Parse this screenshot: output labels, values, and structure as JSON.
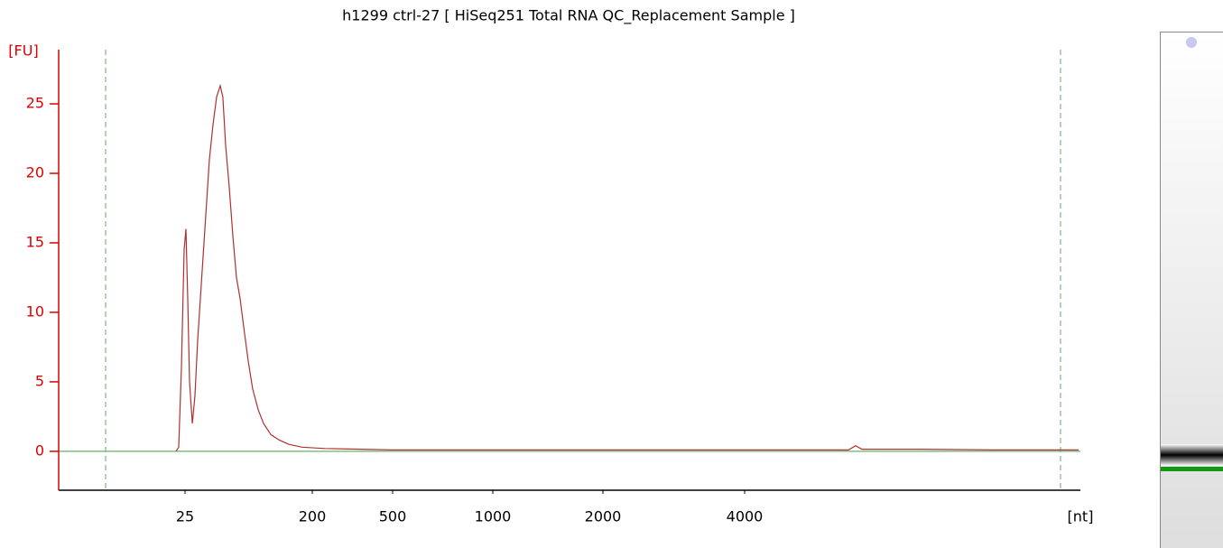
{
  "chart_data": {
    "type": "line",
    "title": "h1299 ctrl-27  [ HiSeq251 Total RNA QC_Replacement Sample ]",
    "y_label": "[FU]",
    "x_label": "[nt]",
    "color": "#b03030",
    "axis_color": "#dd0000",
    "x": [
      12.6,
      16.3,
      20,
      23.8,
      26.2,
      28.7,
      31.2,
      35,
      38.7,
      42.4,
      47.3,
      52.3,
      58.5,
      63.5,
      68.4,
      73.4,
      77,
      80.8,
      85.8,
      90.8,
      95.7,
      100.7,
      105.6,
      111.9,
      118,
      125.5,
      133,
      143,
      155,
      167.7,
      186,
      247,
      382,
      500,
      1000,
      2000,
      4000,
      5465,
      5567,
      5656,
      6484,
      7503,
      8713
    ],
    "values": [
      0,
      0.3,
      6,
      14.5,
      16,
      11,
      5,
      2,
      4,
      8,
      12,
      16,
      21,
      23.5,
      25.5,
      26.3,
      25.5,
      22,
      19,
      15.5,
      12.5,
      11,
      9,
      6.5,
      4.5,
      3,
      2,
      1.2,
      0.8,
      0.5,
      0.3,
      0.2,
      0.15,
      0.1,
      0.1,
      0.1,
      0.1,
      0.1,
      0.4,
      0.15,
      0.15,
      0.1,
      0.1
    ],
    "xticks": [
      25,
      200,
      500,
      1000,
      2000,
      4000
    ],
    "ylim": [
      -2.8,
      28.9
    ],
    "yticks": [
      0,
      5,
      10,
      15,
      20,
      25
    ]
  }
}
